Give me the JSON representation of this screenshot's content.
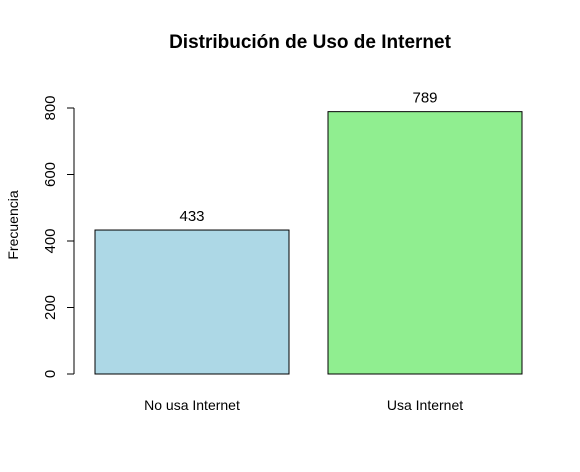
{
  "chart_data": {
    "type": "bar",
    "title": "Distribución de Uso de Internet",
    "xlabel": "",
    "ylabel": "Frecuencia",
    "categories": [
      "No usa Internet",
      "Usa Internet"
    ],
    "values": [
      433,
      789
    ],
    "data_labels": [
      "433",
      "789"
    ],
    "colors": [
      "#add8e6",
      "#90ee90"
    ],
    "yticks": [
      0,
      200,
      400,
      600,
      800
    ],
    "ytick_labels": [
      "0",
      "200",
      "400",
      "600",
      "800"
    ],
    "ylim": [
      0,
      800
    ],
    "grid": false,
    "legend": false
  }
}
